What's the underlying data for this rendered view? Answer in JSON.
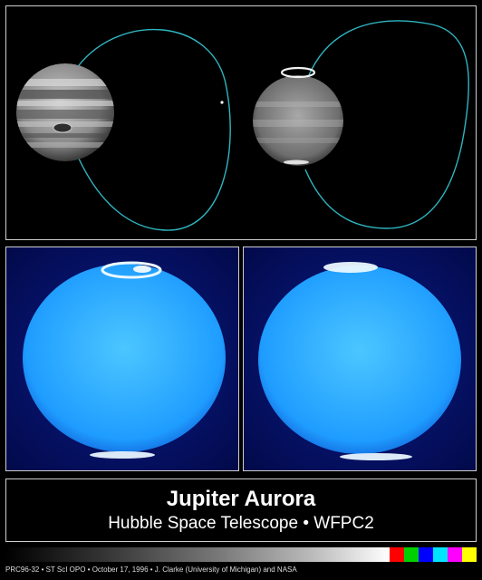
{
  "title": "Jupiter Aurora",
  "subtitle": "Hubble Space Telescope • WFPC2",
  "credit": "PRC96-32 • ST ScI OPO • October 17, 1996 • J. Clarke (University of Michigan) and NASA",
  "colors": {
    "orbit": "#2fb6c2",
    "uv_planet": "#1aa3ff",
    "aurora": "#e8f6ff",
    "panel_border": "#cfcfcf"
  },
  "swatches": [
    "#ff0000",
    "#00d000",
    "#0000ff",
    "#00e5ff",
    "#ff00ff",
    "#ffff00"
  ]
}
